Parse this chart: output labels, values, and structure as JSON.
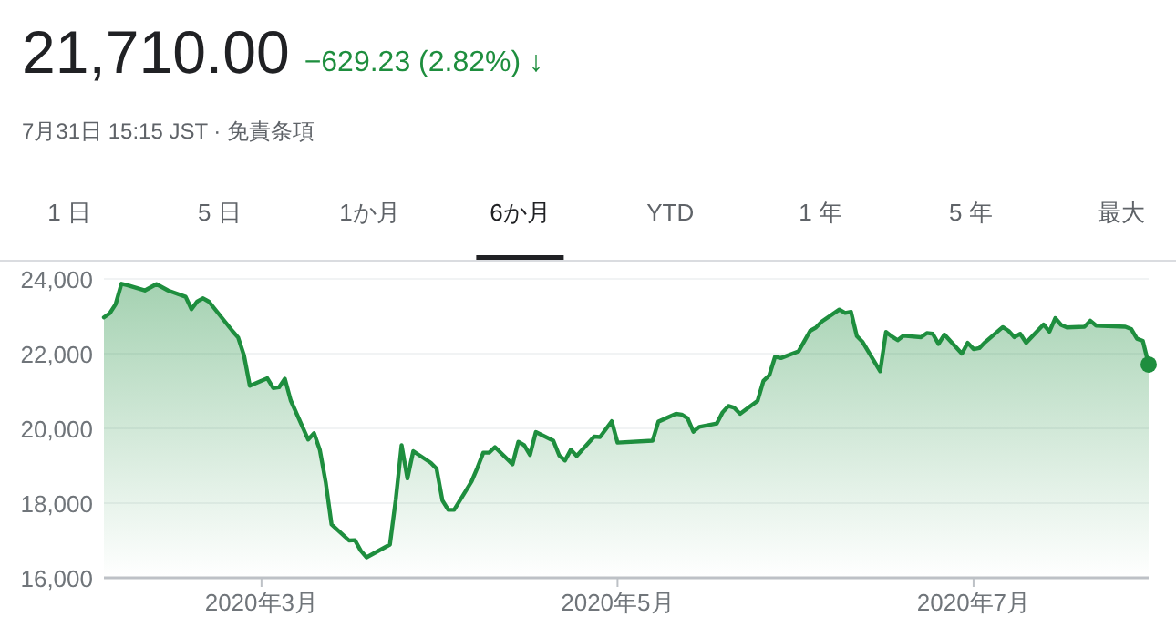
{
  "chart_data": {
    "type": "area",
    "title": "21,710.00",
    "subtitle": "−629.23 (2.82%) ↓",
    "annotations": [
      "7月31日 15:15 JST · 免責条項",
      "1 日",
      "5 日",
      "1か月",
      "6か月",
      "YTD",
      "1 年",
      "5 年",
      "最大"
    ],
    "x": [
      "2020-02-03",
      "2020-02-04",
      "2020-02-05",
      "2020-02-06",
      "2020-02-07",
      "2020-02-10",
      "2020-02-12",
      "2020-02-14",
      "2020-02-17",
      "2020-02-18",
      "2020-02-19",
      "2020-02-20",
      "2020-02-21",
      "2020-02-25",
      "2020-02-26",
      "2020-02-27",
      "2020-02-28",
      "2020-03-02",
      "2020-03-03",
      "2020-03-04",
      "2020-03-05",
      "2020-03-06",
      "2020-03-09",
      "2020-03-10",
      "2020-03-11",
      "2020-03-12",
      "2020-03-13",
      "2020-03-16",
      "2020-03-17",
      "2020-03-18",
      "2020-03-19",
      "2020-03-23",
      "2020-03-24",
      "2020-03-25",
      "2020-03-26",
      "2020-03-27",
      "2020-03-30",
      "2020-03-31",
      "2020-04-01",
      "2020-04-02",
      "2020-04-03",
      "2020-04-06",
      "2020-04-07",
      "2020-04-08",
      "2020-04-09",
      "2020-04-10",
      "2020-04-13",
      "2020-04-14",
      "2020-04-15",
      "2020-04-16",
      "2020-04-17",
      "2020-04-20",
      "2020-04-21",
      "2020-04-22",
      "2020-04-23",
      "2020-04-24",
      "2020-04-27",
      "2020-04-28",
      "2020-04-30",
      "2020-05-01",
      "2020-05-07",
      "2020-05-08",
      "2020-05-11",
      "2020-05-12",
      "2020-05-13",
      "2020-05-14",
      "2020-05-15",
      "2020-05-18",
      "2020-05-19",
      "2020-05-20",
      "2020-05-21",
      "2020-05-22",
      "2020-05-25",
      "2020-05-26",
      "2020-05-27",
      "2020-05-28",
      "2020-05-29",
      "2020-06-01",
      "2020-06-02",
      "2020-06-03",
      "2020-06-04",
      "2020-06-05",
      "2020-06-08",
      "2020-06-09",
      "2020-06-10",
      "2020-06-11",
      "2020-06-12",
      "2020-06-15",
      "2020-06-16",
      "2020-06-17",
      "2020-06-18",
      "2020-06-19",
      "2020-06-22",
      "2020-06-23",
      "2020-06-24",
      "2020-06-25",
      "2020-06-26",
      "2020-06-29",
      "2020-06-30",
      "2020-07-01",
      "2020-07-02",
      "2020-07-03",
      "2020-07-06",
      "2020-07-07",
      "2020-07-08",
      "2020-07-09",
      "2020-07-10",
      "2020-07-13",
      "2020-07-14",
      "2020-07-15",
      "2020-07-16",
      "2020-07-17",
      "2020-07-20",
      "2020-07-21",
      "2020-07-22",
      "2020-07-27",
      "2020-07-28",
      "2020-07-29",
      "2020-07-30",
      "2020-07-31"
    ],
    "series": [
      {
        "color": "#1e8e3e",
        "values": [
          22970,
          23080,
          23320,
          23870,
          23830,
          23690,
          23860,
          23690,
          23520,
          23190,
          23400,
          23480,
          23390,
          22610,
          22430,
          21950,
          21140,
          21340,
          21080,
          21100,
          21330,
          20750,
          19700,
          19870,
          19420,
          18560,
          17430,
          17000,
          17010,
          16730,
          16550,
          16890,
          18090,
          19550,
          18660,
          19390,
          19080,
          18920,
          18070,
          17820,
          17820,
          18580,
          18950,
          19350,
          19350,
          19500,
          19040,
          19640,
          19550,
          19290,
          19900,
          19670,
          19280,
          19140,
          19430,
          19260,
          19780,
          19770,
          20190,
          19620,
          19670,
          20180,
          20390,
          20370,
          20270,
          19910,
          20040,
          20130,
          20430,
          20600,
          20550,
          20390,
          20740,
          21270,
          21420,
          21920,
          21880,
          22060,
          22330,
          22610,
          22700,
          22860,
          23180,
          23090,
          23120,
          22470,
          22310,
          21530,
          22580,
          22460,
          22360,
          22480,
          22440,
          22550,
          22530,
          22260,
          22510,
          22000,
          22290,
          22120,
          22150,
          22310,
          22710,
          22610,
          22440,
          22530,
          22290,
          22780,
          22590,
          22950,
          22770,
          22700,
          22720,
          22880,
          22750,
          22720,
          22660,
          22400,
          22340,
          21710
        ]
      },
      {
        "type": "scatter",
        "color": "#1e8e3e",
        "x": [
          "2020-07-31"
        ],
        "values": [
          21710
        ]
      }
    ],
    "xlim": [
      "2020-02-03",
      "2020-07-31"
    ],
    "ylim": [
      16000,
      24000
    ],
    "xticks": [
      {
        "value": "2020-03-01",
        "label": "2020年3月"
      },
      {
        "value": "2020-05-01",
        "label": "2020年5月"
      },
      {
        "value": "2020-07-01",
        "label": "2020年7月"
      }
    ],
    "yticks": [
      {
        "value": 16000,
        "label": "16,000"
      },
      {
        "value": 18000,
        "label": "18,000"
      },
      {
        "value": 20000,
        "label": "20,000"
      },
      {
        "value": 22000,
        "label": "22,000"
      },
      {
        "value": 24000,
        "label": "24,000"
      }
    ],
    "grid": "y"
  }
}
